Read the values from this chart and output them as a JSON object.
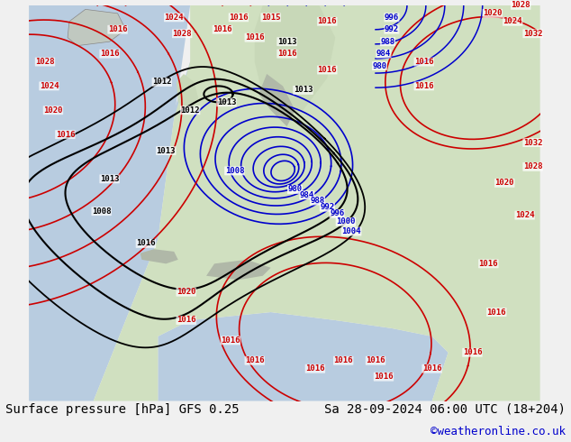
{
  "title_left": "Surface pressure [hPa] GFS 0.25",
  "title_right": "Sa 28-09-2024 06:00 UTC (18+204)",
  "credit": "©weatheronline.co.uk",
  "background_color": "#f0f0e8",
  "map_bg": "#e8f0e8",
  "water_color": "#c8d8f0",
  "land_color": "#d8e8c8",
  "border_color": "#888888",
  "font_size_title": 10,
  "font_size_credit": 9
}
